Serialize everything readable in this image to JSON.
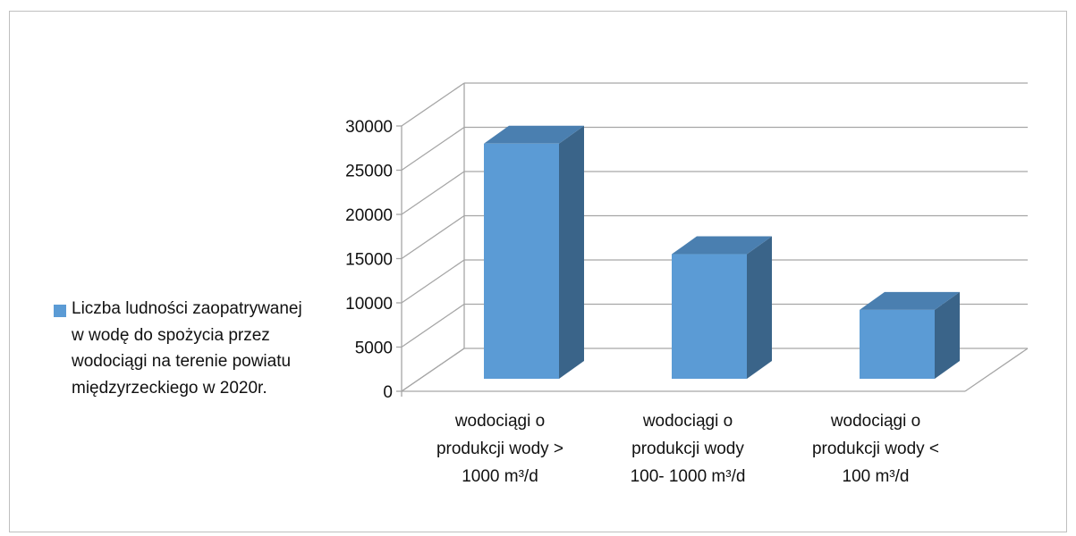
{
  "top_text_fragment": "",
  "chart_data": {
    "type": "bar",
    "title": "",
    "xlabel": "",
    "ylabel": "",
    "ylim": [
      0,
      30000
    ],
    "yticks": [
      0,
      5000,
      10000,
      15000,
      20000,
      25000,
      30000
    ],
    "ytick_labels": [
      "0",
      "5000",
      "10000",
      "15000",
      "20000",
      "25000",
      "30000"
    ],
    "grid": true,
    "style": "3d-column",
    "legend_position": "left",
    "categories": [
      [
        "wodociągi o",
        "produkcji wody >",
        "1000 m³/d"
      ],
      [
        "wodociągi o",
        "produkcji wody",
        "100-  1000 m³/d"
      ],
      [
        "wodociągi o",
        "produkcji wody <",
        "100 m³/d"
      ]
    ],
    "series": [
      {
        "name": "Liczba ludności zaopatrywanej w wodę do spożycia przez wodociągi na terenie powiatu międzyrzeckiego w 2020r.",
        "values": [
          28000,
          15500,
          9200
        ],
        "color": "#5b9bd5",
        "side_color": "#3a6489",
        "top_color": "#4a7fb0"
      }
    ]
  }
}
